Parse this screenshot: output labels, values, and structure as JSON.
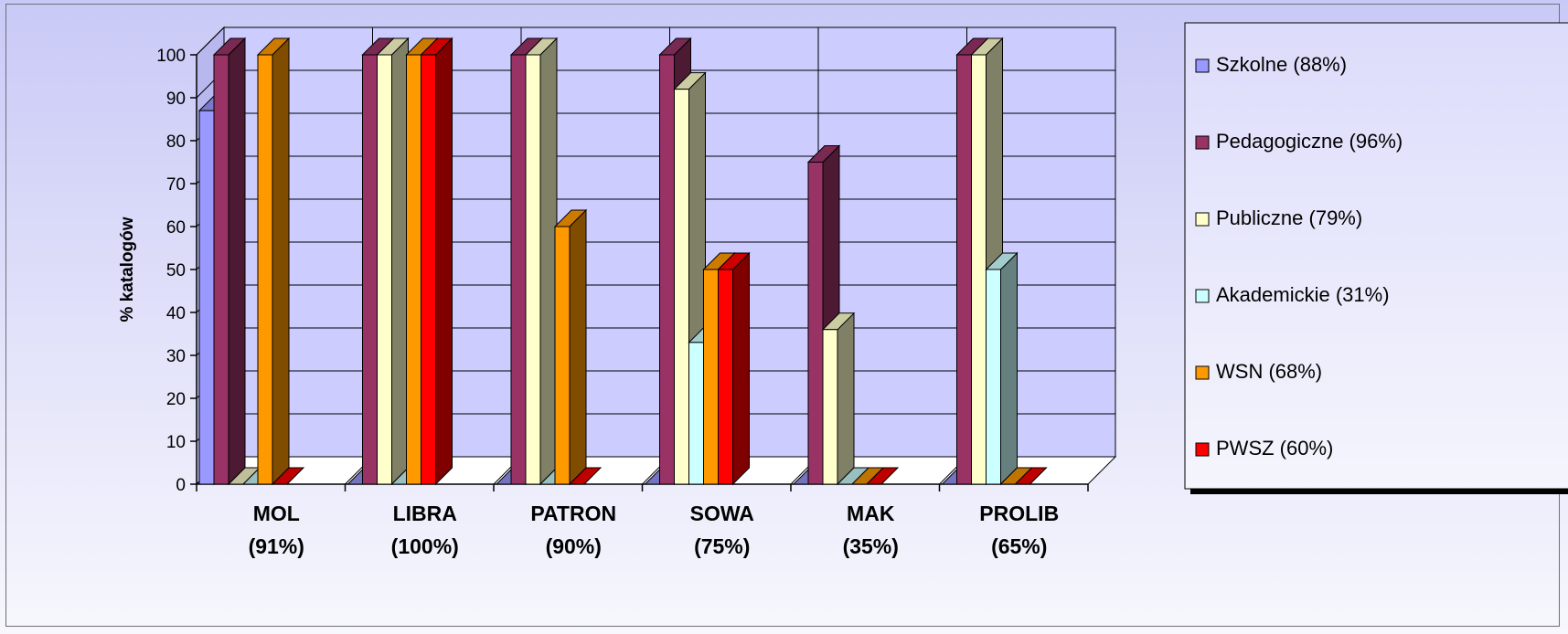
{
  "chart_data": {
    "type": "bar",
    "title": "",
    "xlabel": "",
    "ylabel": "% katalogów",
    "ylim": [
      0,
      100
    ],
    "yticks": [
      0,
      10,
      20,
      30,
      40,
      50,
      60,
      70,
      80,
      90,
      100
    ],
    "grid": true,
    "legend_position": "right",
    "categories": [
      [
        "MOL",
        "(91%)"
      ],
      [
        "LIBRA",
        "(100%)"
      ],
      [
        "PATRON",
        "(90%)"
      ],
      [
        "SOWA",
        "(75%)"
      ],
      [
        "MAK",
        "(35%)"
      ],
      [
        "PROLIB",
        "(65%)"
      ]
    ],
    "series": [
      {
        "name": "Szkolne (88%)",
        "color": "#9999ff",
        "values": [
          87,
          0,
          0,
          0,
          0,
          0
        ]
      },
      {
        "name": "Pedagogiczne (96%)",
        "color": "#993366",
        "values": [
          100,
          100,
          100,
          100,
          75,
          100
        ]
      },
      {
        "name": "Publiczne  (79%)",
        "color": "#ffffcc",
        "values": [
          0,
          100,
          100,
          92,
          36,
          100
        ]
      },
      {
        "name": "Akademickie (31%)",
        "color": "#ccffff",
        "values": [
          0,
          0,
          0,
          33,
          0,
          50
        ]
      },
      {
        "name": "WSN  (68%)",
        "color": "#ff9900",
        "values": [
          100,
          100,
          60,
          50,
          0,
          0
        ]
      },
      {
        "name": "PWSZ  (60%)",
        "color": "#ff0000",
        "values": [
          0,
          100,
          0,
          50,
          0,
          0
        ]
      }
    ]
  }
}
